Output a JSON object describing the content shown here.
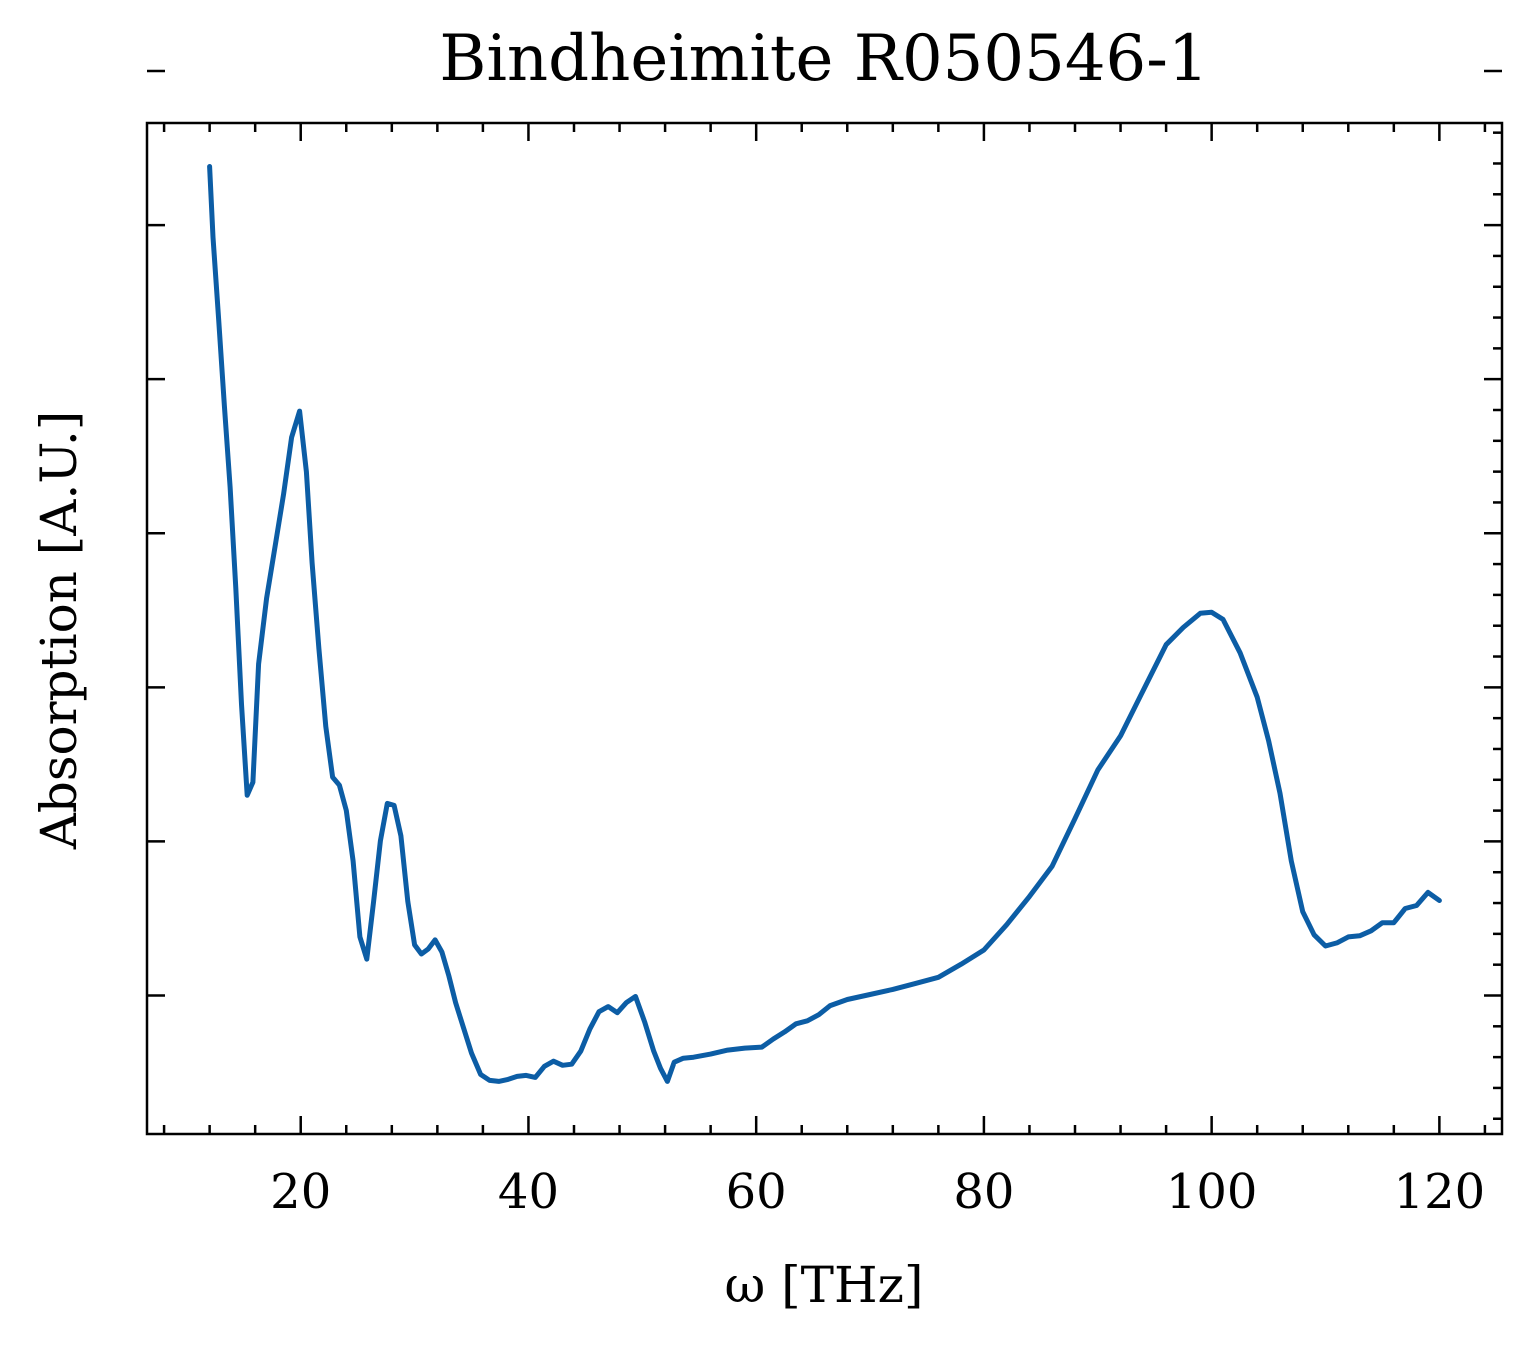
{
  "chart_data": {
    "type": "line",
    "title": "Bindheimite R050546-1",
    "xlabel": "ω [THz]",
    "ylabel": "Absorption [A.U.]",
    "xlim": [
      6.5,
      125.5
    ],
    "ylim": [
      0.0,
      1.0
    ],
    "xticks": [
      20,
      40,
      60,
      80,
      100,
      120
    ],
    "xtick_labels": [
      "20",
      "40",
      "60",
      "80",
      100,
      "120"
    ],
    "y_tick_labels_shown": false,
    "grid": false,
    "series": [
      {
        "color": "#0C5DA5",
        "x": [
          12.0,
          12.3,
          12.8,
          13.3,
          13.8,
          14.3,
          14.8,
          15.3,
          15.8,
          16.3,
          17.0,
          17.8,
          18.5,
          19.2,
          19.9,
          20.5,
          21.0,
          21.6,
          22.2,
          22.8,
          23.4,
          24.0,
          24.6,
          25.2,
          25.8,
          26.4,
          27.0,
          27.6,
          28.2,
          28.8,
          29.4,
          30.0,
          30.6,
          31.2,
          31.8,
          32.4,
          33.0,
          33.6,
          34.3,
          35.0,
          35.8,
          36.6,
          37.4,
          38.2,
          39.0,
          39.8,
          40.6,
          41.4,
          42.2,
          43.0,
          43.8,
          44.6,
          45.4,
          46.2,
          47.0,
          47.8,
          48.6,
          49.4,
          50.2,
          51.0,
          51.6,
          52.2,
          52.8,
          53.6,
          54.5,
          56.0,
          57.5,
          59.0,
          60.5,
          61.5,
          62.5,
          63.5,
          64.5,
          65.5,
          66.5,
          68.0,
          70.0,
          72.0,
          74.0,
          76.0,
          78.0,
          80.0,
          82.0,
          84.0,
          86.0,
          88.0,
          90.0,
          92.0,
          94.0,
          96.0,
          97.5,
          99.0,
          100.0,
          101.0,
          102.5,
          104.0,
          105.0,
          106.0,
          107.0,
          108.0,
          109.0,
          110.0,
          111.0,
          112.0,
          113.0,
          114.0,
          115.0,
          116.0,
          117.0,
          118.0,
          119.0,
          120.0
        ],
        "y": [
          0.957,
          0.887,
          0.805,
          0.72,
          0.64,
          0.54,
          0.425,
          0.335,
          0.348,
          0.465,
          0.53,
          0.585,
          0.633,
          0.689,
          0.715,
          0.655,
          0.565,
          0.48,
          0.403,
          0.353,
          0.345,
          0.32,
          0.27,
          0.195,
          0.173,
          0.23,
          0.29,
          0.327,
          0.325,
          0.295,
          0.23,
          0.187,
          0.178,
          0.183,
          0.192,
          0.18,
          0.157,
          0.13,
          0.105,
          0.08,
          0.059,
          0.053,
          0.052,
          0.054,
          0.057,
          0.058,
          0.056,
          0.067,
          0.072,
          0.068,
          0.069,
          0.082,
          0.104,
          0.121,
          0.126,
          0.12,
          0.13,
          0.136,
          0.111,
          0.082,
          0.065,
          0.052,
          0.071,
          0.075,
          0.076,
          0.079,
          0.083,
          0.085,
          0.086,
          0.094,
          0.101,
          0.109,
          0.112,
          0.118,
          0.127,
          0.133,
          0.138,
          0.143,
          0.149,
          0.155,
          0.168,
          0.182,
          0.207,
          0.235,
          0.265,
          0.312,
          0.36,
          0.394,
          0.439,
          0.484,
          0.501,
          0.515,
          0.516,
          0.509,
          0.476,
          0.432,
          0.389,
          0.337,
          0.27,
          0.22,
          0.197,
          0.186,
          0.189,
          0.195,
          0.196,
          0.201,
          0.209,
          0.209,
          0.223,
          0.226,
          0.239,
          0.231
        ]
      }
    ]
  }
}
